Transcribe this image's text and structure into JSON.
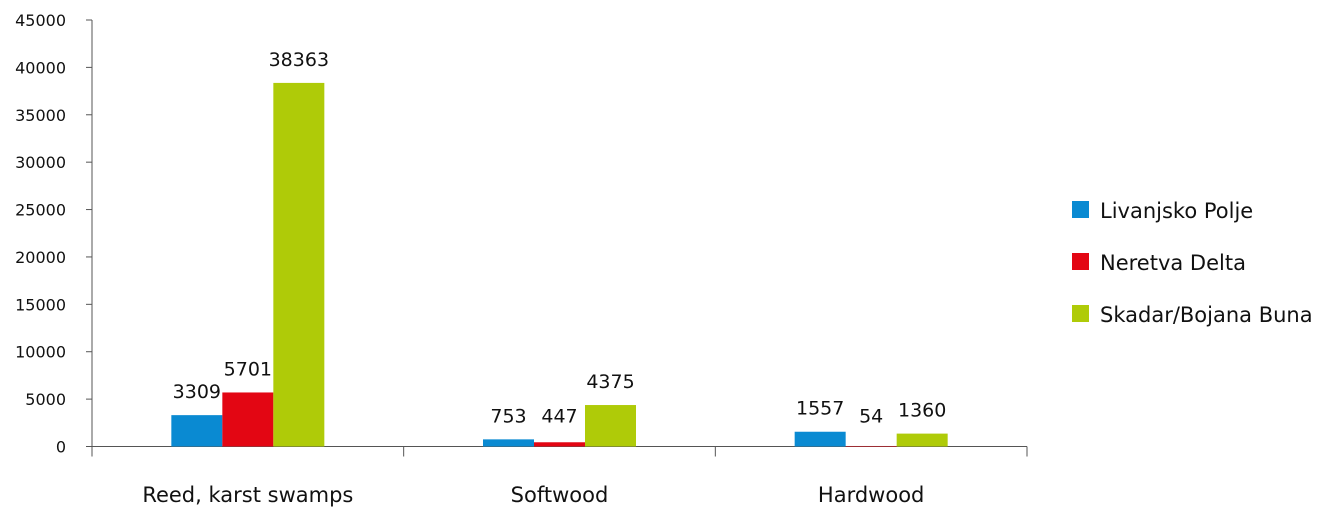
{
  "chart_data": {
    "type": "bar",
    "title": "",
    "xlabel": "",
    "ylabel": "",
    "categories": [
      "Reed, karst swamps",
      "Softwood",
      "Hardwood"
    ],
    "series": [
      {
        "name": "Livanjsko Polje",
        "color": "#0a8ad2",
        "values": [
          3309,
          753,
          1557
        ]
      },
      {
        "name": "Neretva Delta",
        "color": "#e30613",
        "values": [
          5701,
          447,
          54
        ]
      },
      {
        "name": "Skadar/Bojana Buna",
        "color": "#afcb08",
        "values": [
          38363,
          4375,
          1360
        ]
      }
    ],
    "ylim": [
      0,
      45000
    ],
    "yticks": [
      0,
      5000,
      10000,
      15000,
      20000,
      25000,
      30000,
      35000,
      40000,
      45000
    ],
    "grid": false,
    "legend": "right"
  }
}
